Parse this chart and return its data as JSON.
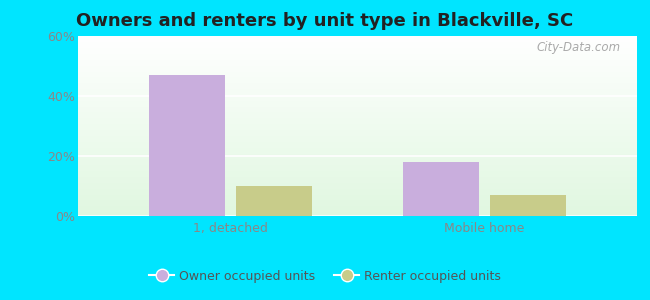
{
  "title": "Owners and renters by unit type in Blackville, SC",
  "categories": [
    "1, detached",
    "Mobile home"
  ],
  "owner_values": [
    47,
    18
  ],
  "renter_values": [
    10,
    7
  ],
  "owner_color": "#c9aedd",
  "renter_color": "#c8cc8a",
  "ylim": [
    0,
    60
  ],
  "yticks": [
    0,
    20,
    40,
    60
  ],
  "ytick_labels": [
    "0%",
    "20%",
    "40%",
    "60%"
  ],
  "bar_width": 0.3,
  "background_outer": "#00e5ff",
  "legend_owner": "Owner occupied units",
  "legend_renter": "Renter occupied units",
  "title_fontsize": 13,
  "watermark": "City-Data.com"
}
